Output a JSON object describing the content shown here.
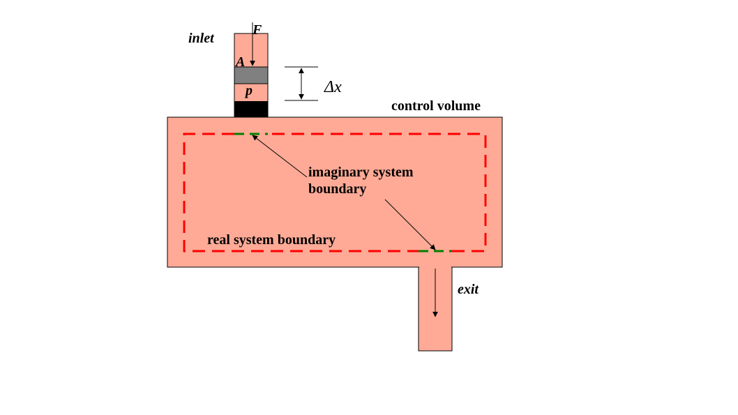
{
  "labels": {
    "inlet": "inlet",
    "force": "F",
    "area": "A",
    "pressure": "p",
    "delta_x": "Δx",
    "control_volume": "control volume",
    "imaginary_line1": "imaginary system",
    "imaginary_line2": "boundary",
    "real_boundary": "real system boundary",
    "exit": "exit"
  },
  "colors": {
    "fluid": "#FFAA96",
    "piston": "#808080",
    "plug": "#000000",
    "real_boundary": "#FF0000",
    "imaginary_boundary": "#008000",
    "outline": "#000000"
  }
}
